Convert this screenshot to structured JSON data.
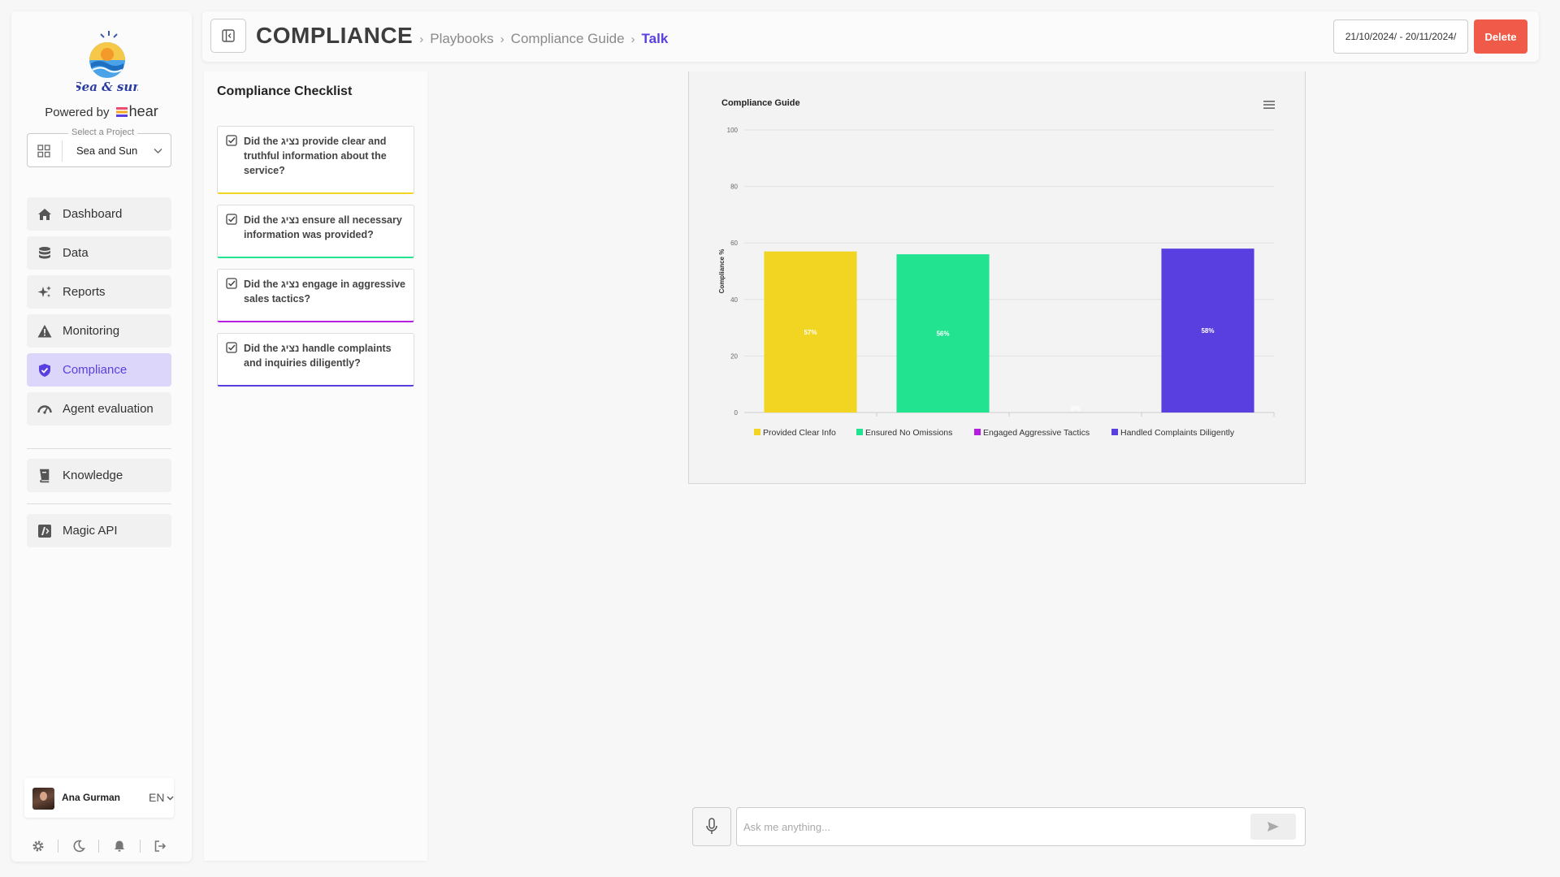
{
  "sidebar": {
    "powered_by": "Powered by",
    "brand_word": "hear",
    "logo_text": "Sea & sun",
    "project": {
      "legend": "Select a Project",
      "value": "Sea and Sun"
    },
    "items": [
      {
        "label": "Dashboard",
        "icon": "home-icon"
      },
      {
        "label": "Data",
        "icon": "database-icon"
      },
      {
        "label": "Reports",
        "icon": "sparkles-icon"
      },
      {
        "label": "Monitoring",
        "icon": "warning-icon"
      },
      {
        "label": "Compliance",
        "icon": "shield-icon",
        "active": true
      },
      {
        "label": "Agent evaluation",
        "icon": "gauge-icon"
      },
      {
        "label": "Knowledge",
        "icon": "book-icon"
      },
      {
        "label": "Magic API",
        "icon": "api-icon"
      }
    ],
    "user": {
      "name": "Ana Gurman",
      "lang": "EN"
    },
    "footer_icons": [
      "gear-icon",
      "moon-icon",
      "bell-icon",
      "logout-icon"
    ]
  },
  "header": {
    "title": "COMPLIANCE",
    "breadcrumbs": [
      "Playbooks",
      "Compliance Guide",
      "Talk"
    ],
    "date_range": "21/10/2024/ - 20/11/2024/",
    "delete_label": "Delete"
  },
  "checklist": {
    "title": "Compliance Checklist",
    "items": [
      {
        "text": "Did the נציג provide clear and truthful information about the service?",
        "color": "#f2d523"
      },
      {
        "text": "Did the נציג ensure all necessary information was provided?",
        "color": "#22e38f"
      },
      {
        "text": "Did the נציג engage in aggressive sales tactics?",
        "color": "#b31ee0"
      },
      {
        "text": "Did the נציג handle complaints and inquiries diligently?",
        "color": "#5a3fe0"
      }
    ]
  },
  "chart_data": {
    "type": "bar",
    "title": "Compliance Guide",
    "ylabel": "Compliance %",
    "xlabel": "",
    "ylim": [
      0,
      100
    ],
    "yticks": [
      0,
      20,
      40,
      60,
      80,
      100
    ],
    "grid": true,
    "legend_position": "bottom",
    "categories": [
      "Provided Clear Info",
      "Ensured No Omissions",
      "Engaged Aggressive Tactics",
      "Handled Complaints Diligently"
    ],
    "values": [
      57,
      56,
      0,
      58
    ],
    "data_labels": [
      "57%",
      "56%",
      "0%",
      "58%"
    ],
    "colors": [
      "#f2d523",
      "#22e38f",
      "#b31ee0",
      "#5a3fe0"
    ]
  },
  "chat": {
    "placeholder": "Ask me anything..."
  },
  "colors": {
    "accent": "#5a3fe0",
    "danger": "#ef5a49",
    "active_bg": "#dcd6fb"
  }
}
